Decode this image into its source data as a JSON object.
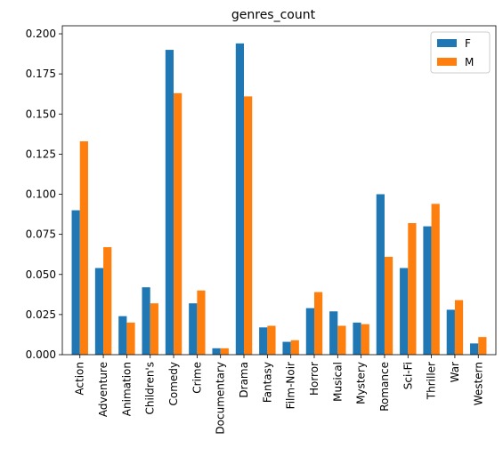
{
  "chart_data": {
    "type": "bar",
    "title": "genres_count",
    "xlabel": "",
    "ylabel": "",
    "ylim": [
      0,
      0.205
    ],
    "yticks": [
      "0.000",
      "0.025",
      "0.050",
      "0.075",
      "0.100",
      "0.125",
      "0.150",
      "0.175",
      "0.200"
    ],
    "yticks_values": [
      0,
      0.025,
      0.05,
      0.075,
      0.1,
      0.125,
      0.15,
      0.175,
      0.2
    ],
    "grid": false,
    "legend_position": "top-right",
    "categories": [
      "Action",
      "Adventure",
      "Animation",
      "Children's",
      "Comedy",
      "Crime",
      "Documentary",
      "Drama",
      "Fantasy",
      "Film-Noir",
      "Horror",
      "Musical",
      "Mystery",
      "Romance",
      "Sci-Fi",
      "Thriller",
      "War",
      "Western"
    ],
    "series": [
      {
        "name": "F",
        "color": "#1f77b4",
        "values": [
          0.09,
          0.054,
          0.024,
          0.042,
          0.19,
          0.032,
          0.004,
          0.194,
          0.017,
          0.008,
          0.029,
          0.027,
          0.02,
          0.1,
          0.054,
          0.08,
          0.028,
          0.007
        ]
      },
      {
        "name": "M",
        "color": "#ff7f0e",
        "values": [
          0.133,
          0.067,
          0.02,
          0.032,
          0.163,
          0.04,
          0.004,
          0.161,
          0.018,
          0.009,
          0.039,
          0.018,
          0.019,
          0.061,
          0.082,
          0.094,
          0.034,
          0.011
        ]
      }
    ]
  }
}
